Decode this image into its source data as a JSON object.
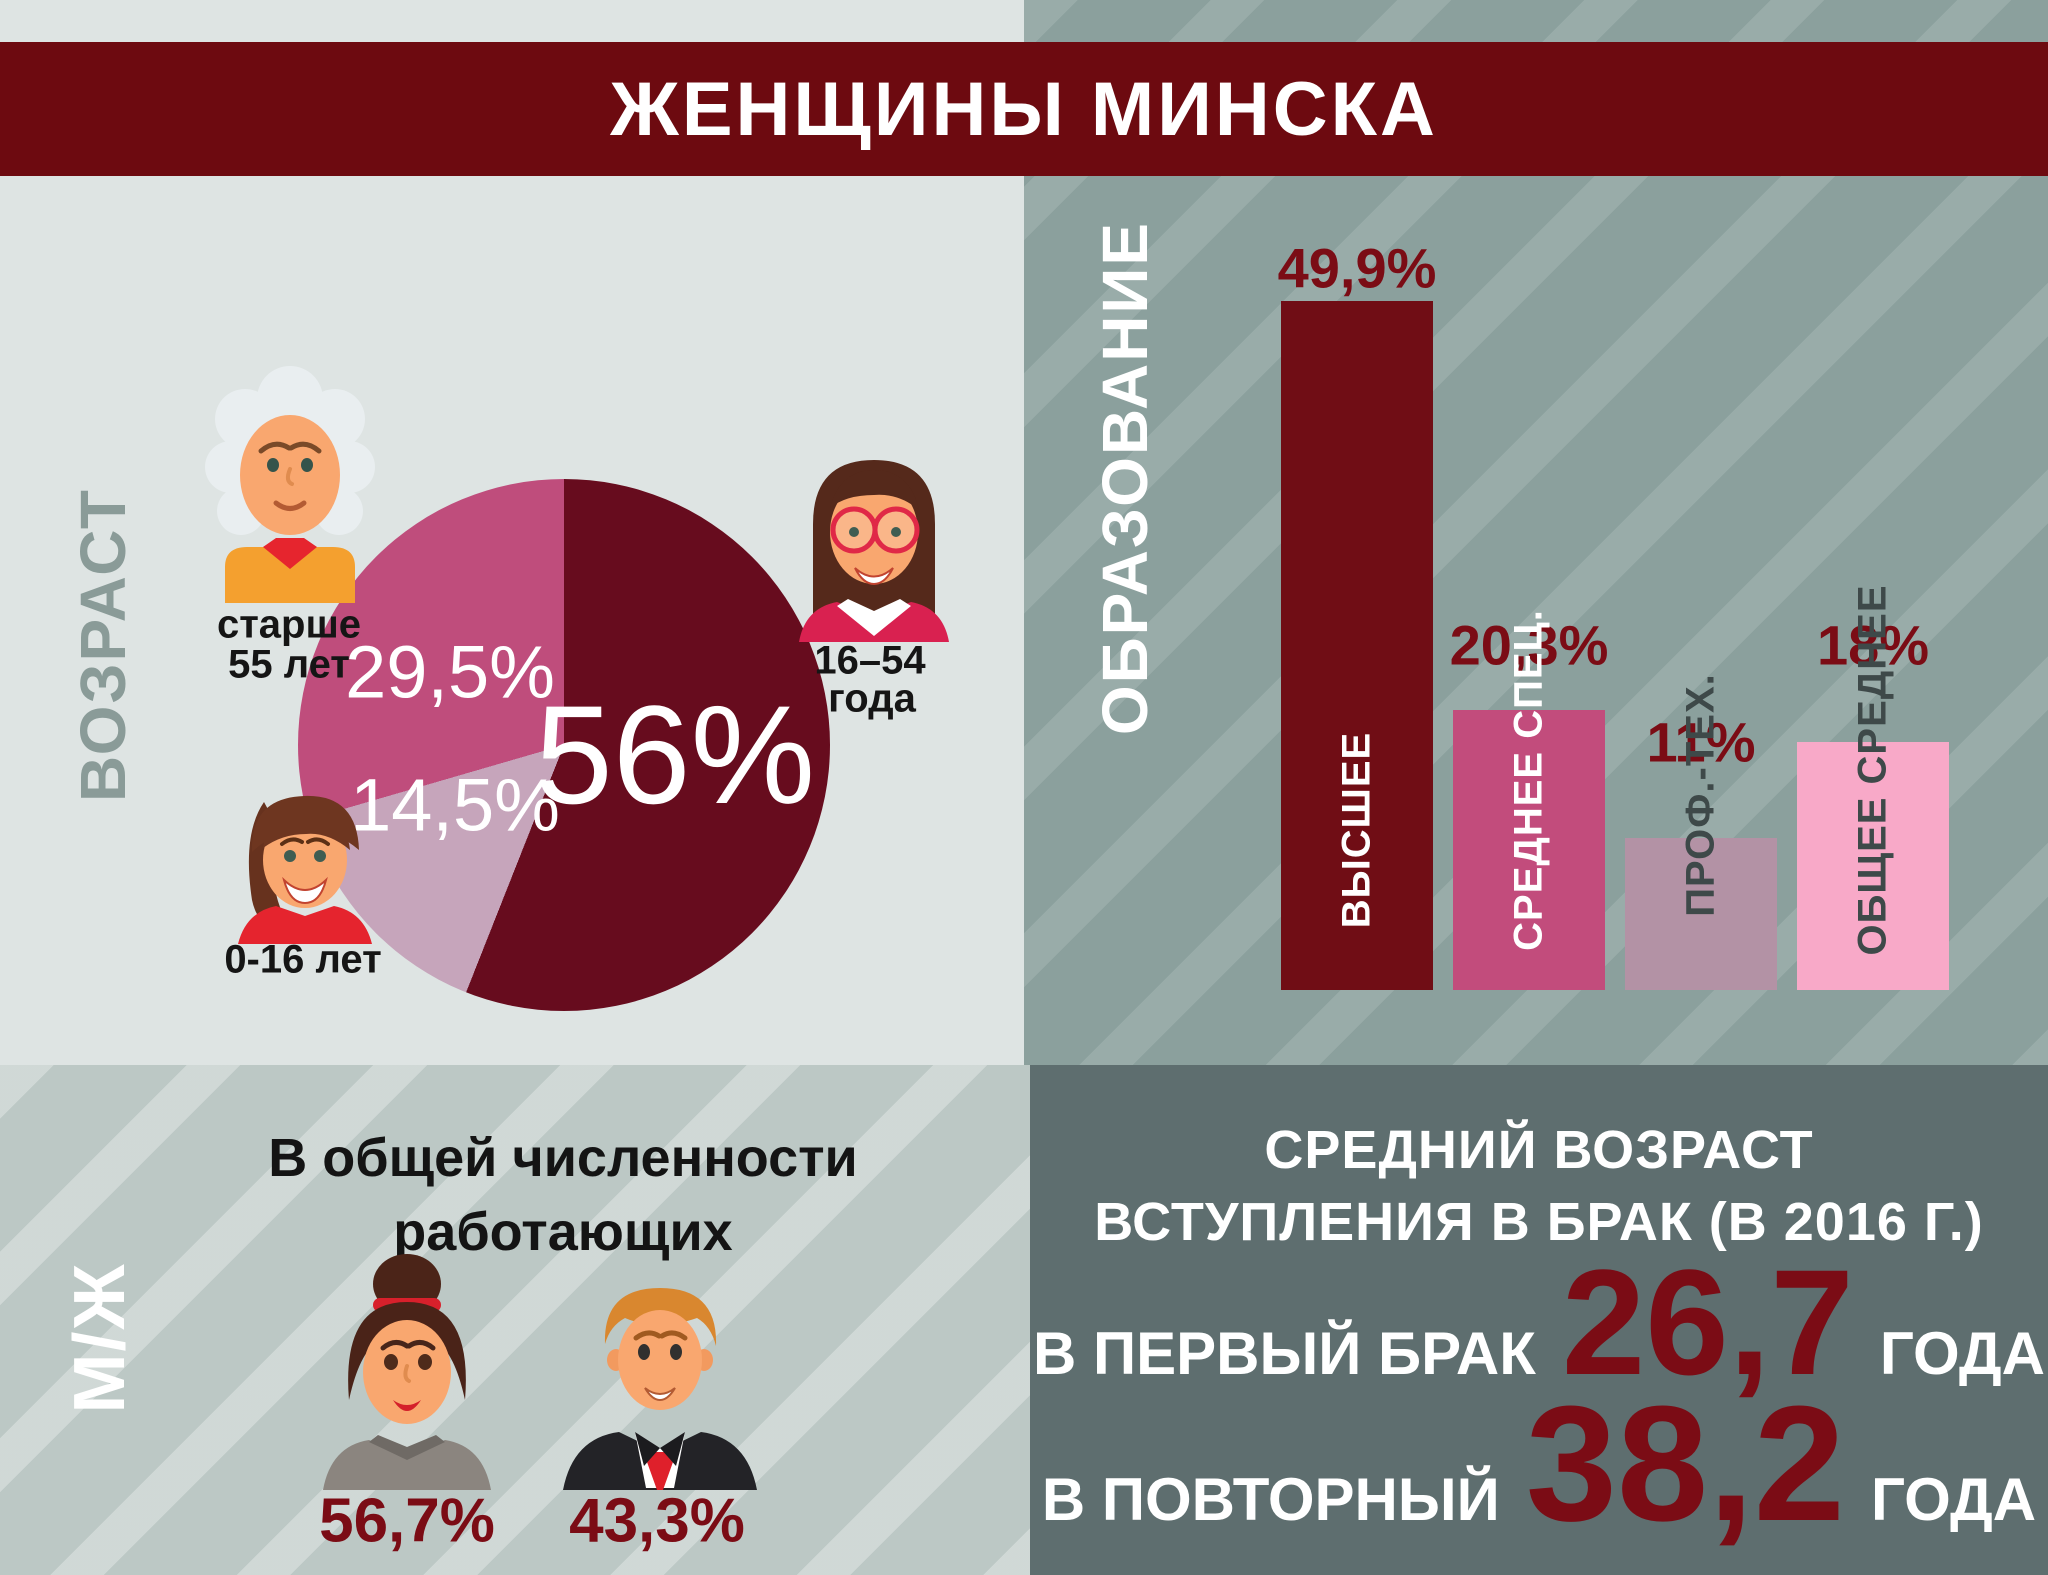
{
  "page": {
    "title": "ЖЕНЩИНЫ МИНСКА"
  },
  "colors": {
    "banner": "#6d0a10",
    "accent_number": "#7b0c15",
    "pie_dark_red": "#670c1e",
    "pie_mauve": "#c6a5bb",
    "pie_pink": "#bf4d7c",
    "bar_dark_red": "#700d15",
    "bar_pink": "#c24c7c",
    "bar_mauve": "#b392a5",
    "bar_light_pink": "#f8a9c8"
  },
  "age": {
    "section_label": "ВОЗРАСТ",
    "slice_labels": {
      "working": "56%",
      "older": "29,5%",
      "kids": "14,5%"
    },
    "groups": {
      "older": {
        "line1": "старше",
        "line2": "55 лет"
      },
      "working": {
        "line1": "16–54",
        "line2": "года"
      },
      "kids": {
        "label": "0-16 лет"
      }
    }
  },
  "education": {
    "section_label": "ОБРАЗОВАНИЕ",
    "bars": [
      {
        "value_label": "49,9%",
        "label": "ВЫСШЕЕ"
      },
      {
        "value_label": "20,3%",
        "label": "СРЕДНЕЕ СПЕЦ."
      },
      {
        "value_label": "11%",
        "label": "ПРОФ.-ТЕХ."
      },
      {
        "value_label": "18%",
        "label": "ОБЩЕЕ СРЕДНЕЕ"
      }
    ]
  },
  "workforce": {
    "section_label": "М/Ж",
    "title_line1": "В общей численности",
    "title_line2": "работающих",
    "female_value": "56,7%",
    "male_value": "43,3%"
  },
  "marriage": {
    "title_line1": "СРЕДНИЙ ВОЗРАСТ",
    "title_line2": "ВСТУПЛЕНИЯ В БРАК (В 2016 Г.)",
    "first": {
      "label": "В ПЕРВЫЙ БРАК",
      "value": "26,7",
      "unit": "ГОДА"
    },
    "second": {
      "label": "В ПОВТОРНЫЙ",
      "value": "38,2",
      "unit": "ГОДА"
    }
  },
  "chart_data": [
    {
      "type": "pie",
      "title": "ВОЗРАСТ",
      "slices": [
        {
          "label": "16–54 года",
          "value": 56,
          "display": "56%",
          "color": "#670c1e"
        },
        {
          "label": "0-16 лет",
          "value": 14.5,
          "display": "14,5%",
          "color": "#c6a5bb"
        },
        {
          "label": "старше 55 лет",
          "value": 29.5,
          "display": "29,5%",
          "color": "#bf4d7c"
        }
      ],
      "start_angle_deg": 0,
      "direction": "clockwise",
      "legend_position": "around"
    },
    {
      "type": "bar",
      "title": "ОБРАЗОВАНИЕ",
      "categories": [
        "ВЫСШЕЕ",
        "СРЕДНЕЕ СПЕЦ.",
        "ПРОФ.-ТЕХ.",
        "ОБЩЕЕ СРЕДНЕЕ"
      ],
      "values": [
        49.9,
        20.3,
        11,
        18
      ],
      "value_labels": [
        "49,9%",
        "20,3%",
        "11%",
        "18%"
      ],
      "colors": [
        "#700d15",
        "#c24c7c",
        "#b392a5",
        "#f8a9c8"
      ],
      "xlabel": "",
      "ylabel": "",
      "ylim": [
        0,
        50
      ],
      "grid": false
    },
    {
      "type": "bar",
      "title": "М/Ж — В общей численности работающих",
      "categories": [
        "женщины",
        "мужчины"
      ],
      "values": [
        56.7,
        43.3
      ],
      "value_labels": [
        "56,7%",
        "43,3%"
      ]
    },
    {
      "type": "table",
      "title": "СРЕДНИЙ ВОЗРАСТ ВСТУПЛЕНИЯ В БРАК (В 2016 Г.)",
      "rows": [
        [
          "В ПЕРВЫЙ БРАК",
          "26,7",
          "ГОДА"
        ],
        [
          "В ПОВТОРНЫЙ",
          "38,2",
          "ГОДА"
        ]
      ]
    }
  ]
}
